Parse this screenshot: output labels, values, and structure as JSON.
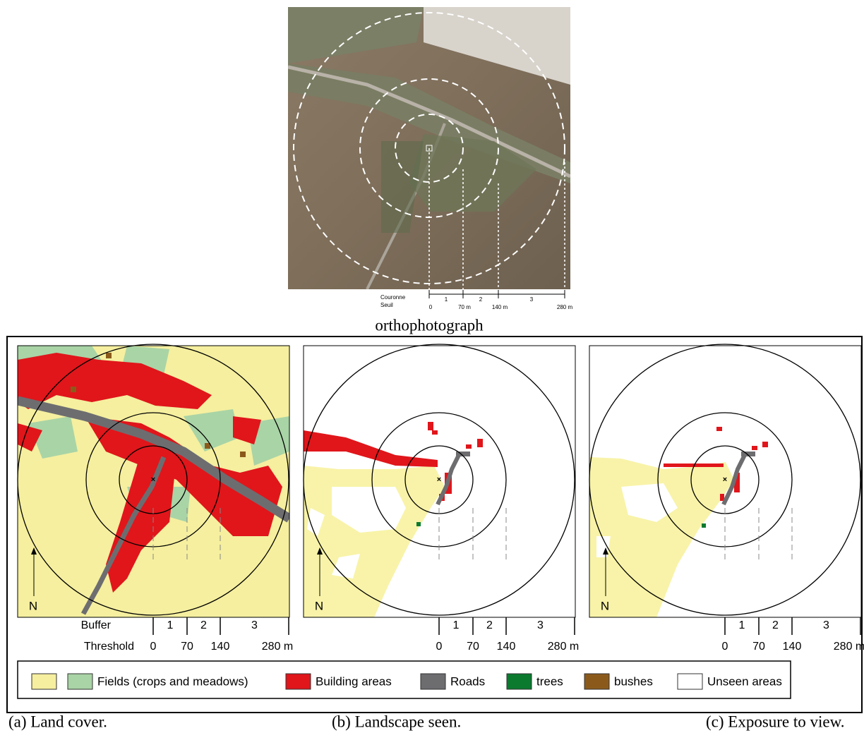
{
  "orthophoto": {
    "scale": {
      "row_labels": [
        "Couronne",
        "Seuil"
      ],
      "buffers": [
        "1",
        "2",
        "3"
      ],
      "thresholds": [
        "0",
        "70 m",
        "140 m",
        "280 m"
      ]
    },
    "caption": "orthophotograph"
  },
  "panels": [
    {
      "row_labels": [
        "Buffer",
        "Threshold"
      ],
      "buffers": [
        "1",
        "2",
        "3"
      ],
      "thresholds": [
        "0",
        "70",
        "140",
        "280 m"
      ],
      "north": "N",
      "caption": "(a) Land cover."
    },
    {
      "buffers": [
        "1",
        "2",
        "3"
      ],
      "thresholds": [
        "0",
        "70",
        "140",
        "280 m"
      ],
      "north": "N",
      "caption": "(b) Landscape seen."
    },
    {
      "buffers": [
        "1",
        "2",
        "3"
      ],
      "thresholds": [
        "0",
        "70",
        "140",
        "280 m"
      ],
      "north": "N",
      "caption": "(c) Exposure to view."
    }
  ],
  "legend": [
    "Fields (crops and meadows)",
    "Building areas",
    "Roads",
    "trees",
    "bushes",
    "Unseen areas"
  ]
}
